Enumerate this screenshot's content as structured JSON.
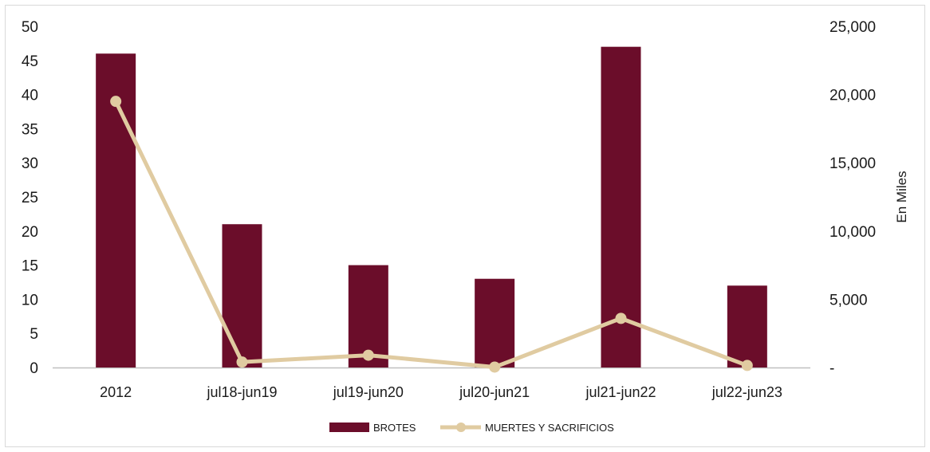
{
  "chart_data": {
    "type": "bar",
    "categories": [
      "2012",
      "jul18-jun19",
      "jul19-jun20",
      "jul20-jun21",
      "jul21-jun22",
      "jul22-jun23"
    ],
    "series": [
      {
        "name": "BROTES",
        "type": "bar",
        "axis": "left",
        "color": "#6b0d2a",
        "values": [
          46,
          21,
          15,
          13,
          47,
          12
        ]
      },
      {
        "name": "MUERTES Y SACRIFICIOS",
        "type": "line",
        "axis": "right",
        "color": "#e0cba1",
        "values": [
          19500,
          400,
          900,
          30,
          3600,
          150
        ]
      }
    ],
    "left_axis": {
      "min": 0,
      "max": 50,
      "ticks": [
        0,
        5,
        10,
        15,
        20,
        25,
        30,
        35,
        40,
        45,
        50
      ],
      "tick_labels": [
        "0",
        "5",
        "10",
        "15",
        "20",
        "25",
        "30",
        "35",
        "40",
        "45",
        "50"
      ]
    },
    "right_axis": {
      "min": 0,
      "max": 25000,
      "ticks": [
        0,
        5000,
        10000,
        15000,
        20000,
        25000
      ],
      "tick_labels": [
        "-",
        "5,000",
        "10,000",
        "15,000",
        "20,000",
        "25,000"
      ],
      "label": "En Miles"
    },
    "legend": {
      "position": "bottom",
      "items": [
        {
          "label": "BROTES",
          "kind": "bar"
        },
        {
          "label": "MUERTES Y SACRIFICIOS",
          "kind": "line"
        }
      ]
    },
    "grid": false
  }
}
